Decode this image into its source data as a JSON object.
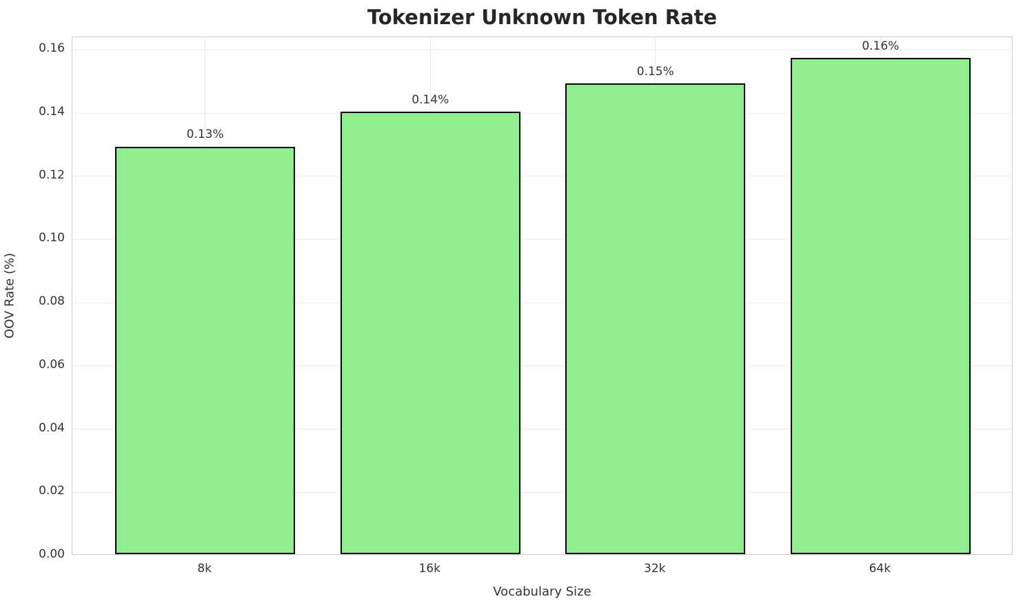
{
  "chart_data": {
    "type": "bar",
    "title": "Tokenizer Unknown Token Rate",
    "xlabel": "Vocabulary Size",
    "ylabel": "OOV Rate (%)",
    "categories": [
      "8k",
      "16k",
      "32k",
      "64k"
    ],
    "values": [
      0.129,
      0.14,
      0.149,
      0.157
    ],
    "bar_labels": [
      "0.13%",
      "0.14%",
      "0.15%",
      "0.16%"
    ],
    "y_ticks": [
      0.0,
      0.02,
      0.04,
      0.06,
      0.08,
      0.1,
      0.12,
      0.14,
      0.16
    ],
    "y_tick_labels": [
      "0.00",
      "0.02",
      "0.04",
      "0.06",
      "0.08",
      "0.10",
      "0.12",
      "0.14",
      "0.16"
    ],
    "ylim": [
      0,
      0.164
    ],
    "grid": true,
    "legend_position": "none",
    "bar_color": "#90EE90",
    "bar_edge_color": "#000000"
  },
  "colors": {
    "background": "#ffffff",
    "grid": "#e9e9e9",
    "spine": "#cccccc",
    "title_text": "#262626",
    "tick_text": "#333333"
  }
}
